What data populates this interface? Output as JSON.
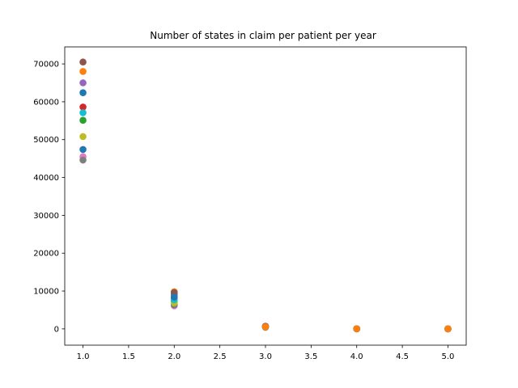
{
  "chart_data": {
    "type": "scatter",
    "title": "Number of states in claim per patient per year",
    "xlabel": "",
    "ylabel": "",
    "xlim": [
      0.8,
      5.2
    ],
    "ylim": [
      -4300,
      74500
    ],
    "xticks": [
      1.0,
      1.5,
      2.0,
      2.5,
      3.0,
      3.5,
      4.0,
      4.5,
      5.0
    ],
    "xtick_labels": [
      "1.0",
      "1.5",
      "2.0",
      "2.5",
      "3.0",
      "3.5",
      "4.0",
      "4.5",
      "5.0"
    ],
    "yticks": [
      0,
      10000,
      20000,
      30000,
      40000,
      50000,
      60000,
      70000
    ],
    "ytick_labels": [
      "0",
      "10000",
      "20000",
      "30000",
      "40000",
      "50000",
      "60000",
      "70000"
    ],
    "grid": false,
    "series": [
      {
        "color": "#1f77b4",
        "x": [
          1,
          2,
          3,
          4,
          5
        ],
        "y": [
          62400,
          9000,
          620,
          25,
          3
        ]
      },
      {
        "color": "#ff7f0e",
        "x": [
          1,
          2,
          3,
          4,
          5
        ],
        "y": [
          68000,
          9800,
          700,
          30,
          4
        ]
      },
      {
        "color": "#2ca02c",
        "x": [
          1,
          2,
          3,
          4,
          5
        ],
        "y": [
          55100,
          7300,
          520,
          20,
          3
        ]
      },
      {
        "color": "#d62728",
        "x": [
          1,
          2,
          3,
          4,
          5
        ],
        "y": [
          58600,
          8200,
          580,
          22,
          3
        ]
      },
      {
        "color": "#9467bd",
        "x": [
          1,
          2,
          3,
          4,
          5
        ],
        "y": [
          65000,
          9300,
          650,
          27,
          4
        ]
      },
      {
        "color": "#8c564b",
        "x": [
          1,
          2,
          3,
          4,
          5
        ],
        "y": [
          70500,
          9600,
          680,
          29,
          4
        ]
      },
      {
        "color": "#e377c2",
        "x": [
          1,
          2,
          3,
          4,
          5
        ],
        "y": [
          45500,
          6100,
          420,
          16,
          2
        ]
      },
      {
        "color": "#7f7f7f",
        "x": [
          1,
          2,
          3,
          4,
          5
        ],
        "y": [
          44600,
          6300,
          430,
          17,
          2
        ]
      },
      {
        "color": "#bcbd22",
        "x": [
          1,
          2,
          3,
          4,
          5
        ],
        "y": [
          50800,
          6900,
          480,
          18,
          2
        ]
      },
      {
        "color": "#17becf",
        "x": [
          1,
          2,
          3,
          4,
          5
        ],
        "y": [
          57100,
          7700,
          540,
          21,
          3
        ]
      },
      {
        "color": "#1f77b4",
        "x": [
          1,
          2,
          3,
          4,
          5
        ],
        "y": [
          47400,
          8400,
          600,
          23,
          3
        ]
      },
      {
        "color": "#ff7f0e",
        "x": [
          3,
          4,
          5
        ],
        "y": [
          560,
          24,
          3
        ]
      }
    ]
  }
}
